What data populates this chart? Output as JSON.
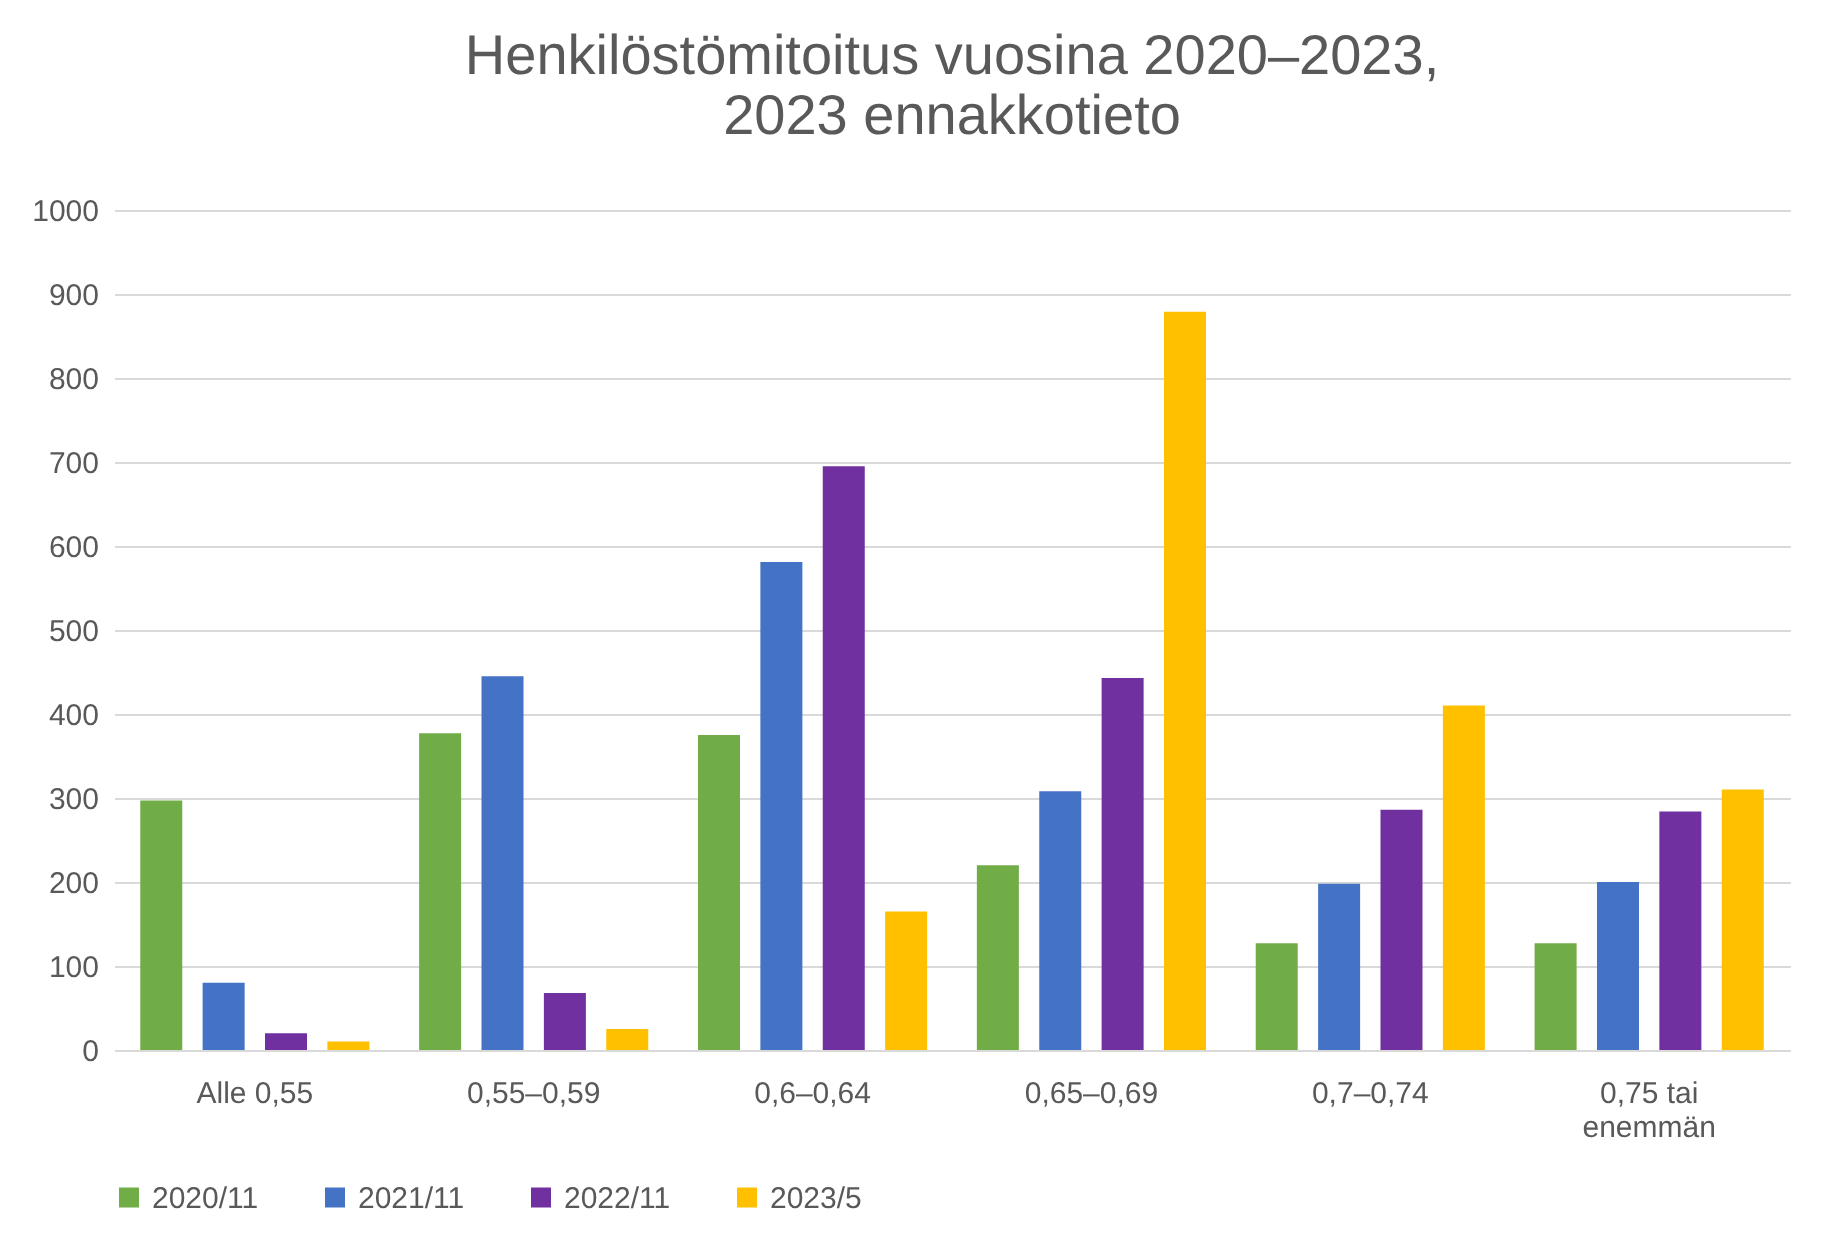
{
  "chart_data": {
    "type": "bar",
    "title": "Henkilöstömitoitus vuosina 2020–2023,\n2023 ennakkotieto",
    "categories": [
      "Alle 0,55",
      "0,55–0,59",
      "0,6–0,64",
      "0,65–0,69",
      "0,7–0,74",
      "0,75 tai enemmän"
    ],
    "series": [
      {
        "name": "2020/11",
        "color": "#70ad47",
        "values": [
          297,
          377,
          375,
          220,
          127,
          127
        ]
      },
      {
        "name": "2021/11",
        "color": "#4472c4",
        "values": [
          80,
          445,
          581,
          308,
          198,
          200
        ]
      },
      {
        "name": "2022/11",
        "color": "#7030a0",
        "values": [
          20,
          68,
          695,
          443,
          286,
          284
        ]
      },
      {
        "name": "2023/5",
        "color": "#ffc000",
        "values": [
          10,
          25,
          165,
          879,
          410,
          310
        ]
      }
    ],
    "ylim": [
      0,
      1000
    ],
    "yticks": [
      0,
      100,
      200,
      300,
      400,
      500,
      600,
      700,
      800,
      900,
      1000
    ],
    "grid": "y",
    "legend": "bottom"
  }
}
